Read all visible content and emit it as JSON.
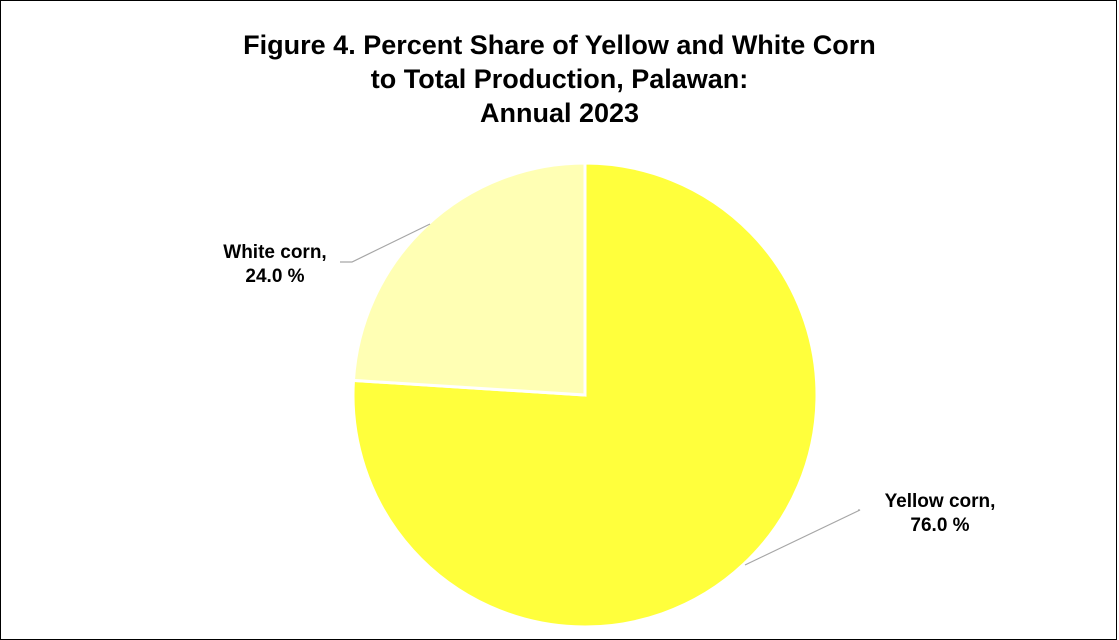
{
  "chart_data": {
    "type": "pie",
    "title_lines": [
      "Figure 4. Percent Share of Yellow and White Corn",
      "to Total Production, Palawan:",
      "Annual 2023"
    ],
    "slices": [
      {
        "name": "Yellow corn",
        "value": 76.0,
        "label_line1": "Yellow corn,",
        "label_line2": "76.0 %",
        "color": "#FFFF3C"
      },
      {
        "name": "White corn",
        "value": 24.0,
        "label_line1": "White corn,",
        "label_line2": "24.0 %",
        "color": "#FFFFB4"
      }
    ],
    "start_angle_deg": 0,
    "direction": "clockwise",
    "legend": "none"
  }
}
